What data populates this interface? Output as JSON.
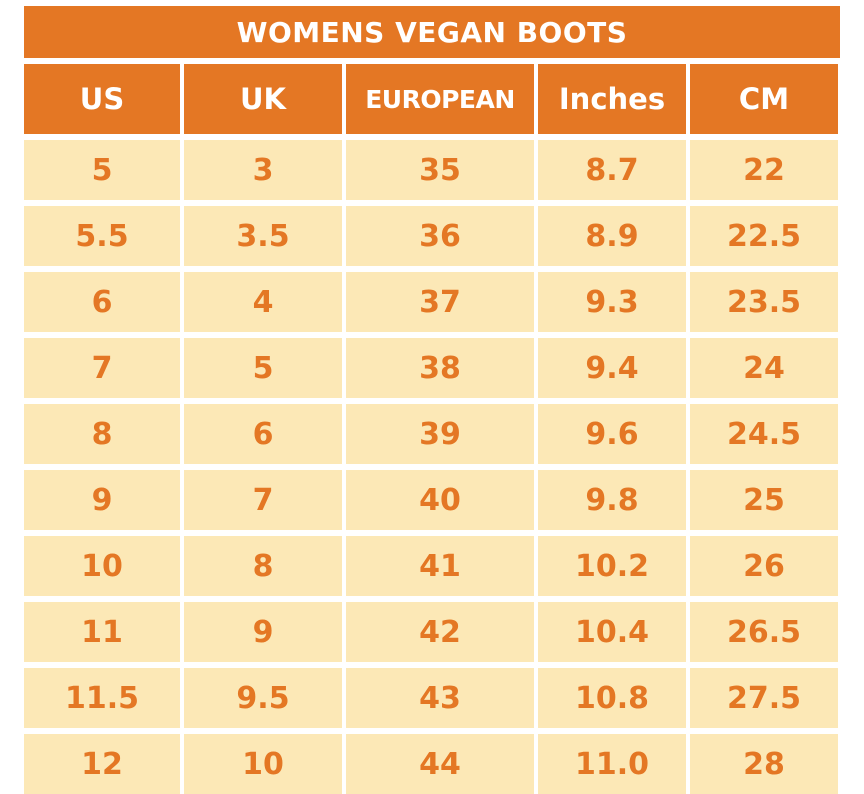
{
  "table": {
    "title": "WOMENS VEGAN BOOTS",
    "headers": [
      "US",
      "UK",
      "EUROPEAN",
      "Inches",
      "CM"
    ],
    "rows": [
      [
        "5",
        "3",
        "35",
        "8.7",
        "22"
      ],
      [
        "5.5",
        "3.5",
        "36",
        "8.9",
        "22.5"
      ],
      [
        "6",
        "4",
        "37",
        "9.3",
        "23.5"
      ],
      [
        "7",
        "5",
        "38",
        "9.4",
        "24"
      ],
      [
        "8",
        "6",
        "39",
        "9.6",
        "24.5"
      ],
      [
        "9",
        "7",
        "40",
        "9.8",
        "25"
      ],
      [
        "10",
        "8",
        "41",
        "10.2",
        "26"
      ],
      [
        "11",
        "9",
        "42",
        "10.4",
        "26.5"
      ],
      [
        "11.5",
        "9.5",
        "43",
        "10.8",
        "27.5"
      ],
      [
        "12",
        "10",
        "44",
        "11.0",
        "28"
      ]
    ]
  },
  "colors": {
    "header_bg": "#e47724",
    "header_text": "#ffffff",
    "cell_bg": "#fce8b6",
    "cell_text": "#e47724"
  }
}
